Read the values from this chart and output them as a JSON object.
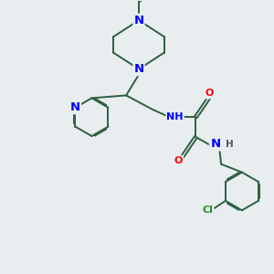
{
  "background_color": "#e8edf0",
  "bond_color": "#2d6040",
  "N_color": "#0000ff",
  "O_color": "#ff0000",
  "Cl_color": "#2a8c2a",
  "line_width": 1.4,
  "font_size": 8.5,
  "xlim": [
    0,
    3
  ],
  "ylim": [
    0,
    3
  ]
}
